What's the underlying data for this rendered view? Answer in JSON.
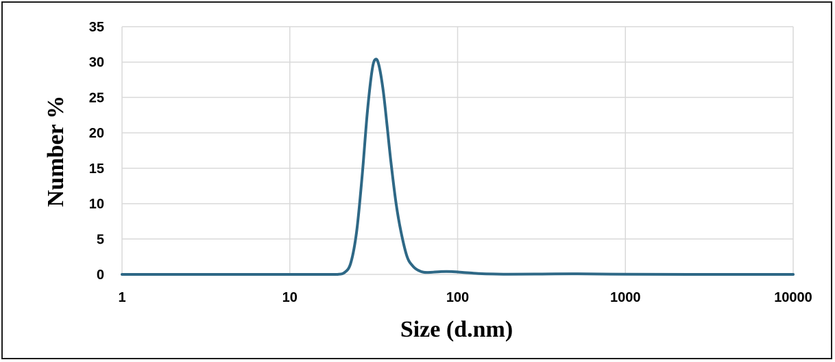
{
  "chart_data": {
    "type": "line",
    "title": "",
    "xlabel": "Size (d.nm)",
    "ylabel": "Number %",
    "xscale": "log",
    "xlim": [
      1,
      10000
    ],
    "ylim": [
      0,
      35
    ],
    "x_ticks": [
      "1",
      "10",
      "100",
      "1000",
      "10000"
    ],
    "y_ticks": [
      "0",
      "5",
      "10",
      "15",
      "20",
      "25",
      "30",
      "35"
    ],
    "grid": true,
    "legend": "none",
    "line_color": "#2e6886",
    "series": [
      {
        "x": [
          1,
          10,
          18,
          19.5,
          21,
          23,
          25,
          27,
          29,
          31,
          32.5,
          34,
          36,
          38,
          40,
          43,
          46,
          50,
          54,
          58,
          63,
          70,
          80,
          92,
          105,
          120,
          140,
          170,
          200,
          300,
          500,
          1000,
          3000,
          10000
        ],
        "values": [
          0,
          0,
          0,
          0.02,
          0.2,
          1.5,
          6,
          14,
          23,
          29,
          30.4,
          29.5,
          26,
          21,
          16,
          10,
          6,
          2.5,
          1.2,
          0.6,
          0.3,
          0.3,
          0.4,
          0.4,
          0.3,
          0.2,
          0.1,
          0.05,
          0.02,
          0.05,
          0.08,
          0.02,
          0,
          0
        ]
      }
    ]
  }
}
